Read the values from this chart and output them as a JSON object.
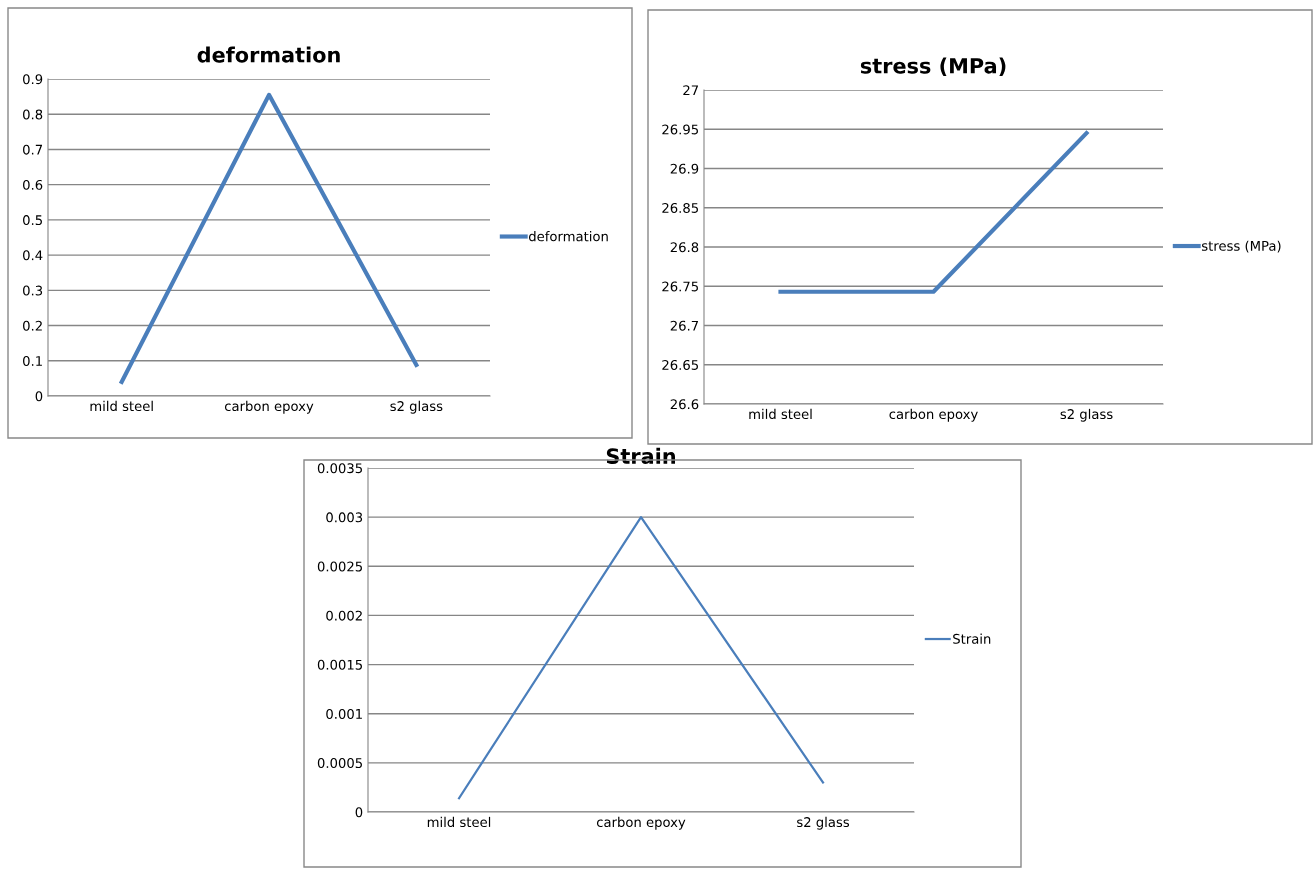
{
  "chart_data": [
    {
      "type": "line",
      "title": "deformation",
      "categories": [
        "mild steel",
        "carbon epoxy",
        "s2 glass"
      ],
      "series": [
        {
          "name": "deformation",
          "color": "#4a7ebb",
          "values": [
            0.04,
            0.855,
            0.088
          ]
        }
      ],
      "ylim": [
        0,
        0.9
      ],
      "yticks": [
        0,
        0.1,
        0.2,
        0.3,
        0.4,
        0.5,
        0.6,
        0.7,
        0.8,
        0.9
      ],
      "grid": "y",
      "legend": "right"
    },
    {
      "type": "line",
      "title": "stress (MPa)",
      "categories": [
        "mild steel",
        "carbon epoxy",
        "s2 glass"
      ],
      "series": [
        {
          "name": "stress (MPa)",
          "color": "#4a7ebb",
          "values": [
            26.743,
            26.743,
            26.945
          ]
        }
      ],
      "ylim": [
        26.6,
        27
      ],
      "yticks": [
        26.6,
        26.65,
        26.7,
        26.75,
        26.8,
        26.85,
        26.9,
        26.95,
        27
      ],
      "grid": "y",
      "legend": "right"
    },
    {
      "type": "line",
      "title": "Strain",
      "categories": [
        "mild steel",
        "carbon epoxy",
        "s2 glass"
      ],
      "series": [
        {
          "name": "Strain",
          "color": "#4a7ebb",
          "values": [
            0.00014,
            0.003,
            0.0003
          ]
        }
      ],
      "ylim": [
        0,
        0.0035
      ],
      "yticks": [
        0,
        0.0005,
        0.001,
        0.0015,
        0.002,
        0.0025,
        0.003,
        0.0035
      ],
      "grid": "y",
      "legend": "right"
    }
  ]
}
